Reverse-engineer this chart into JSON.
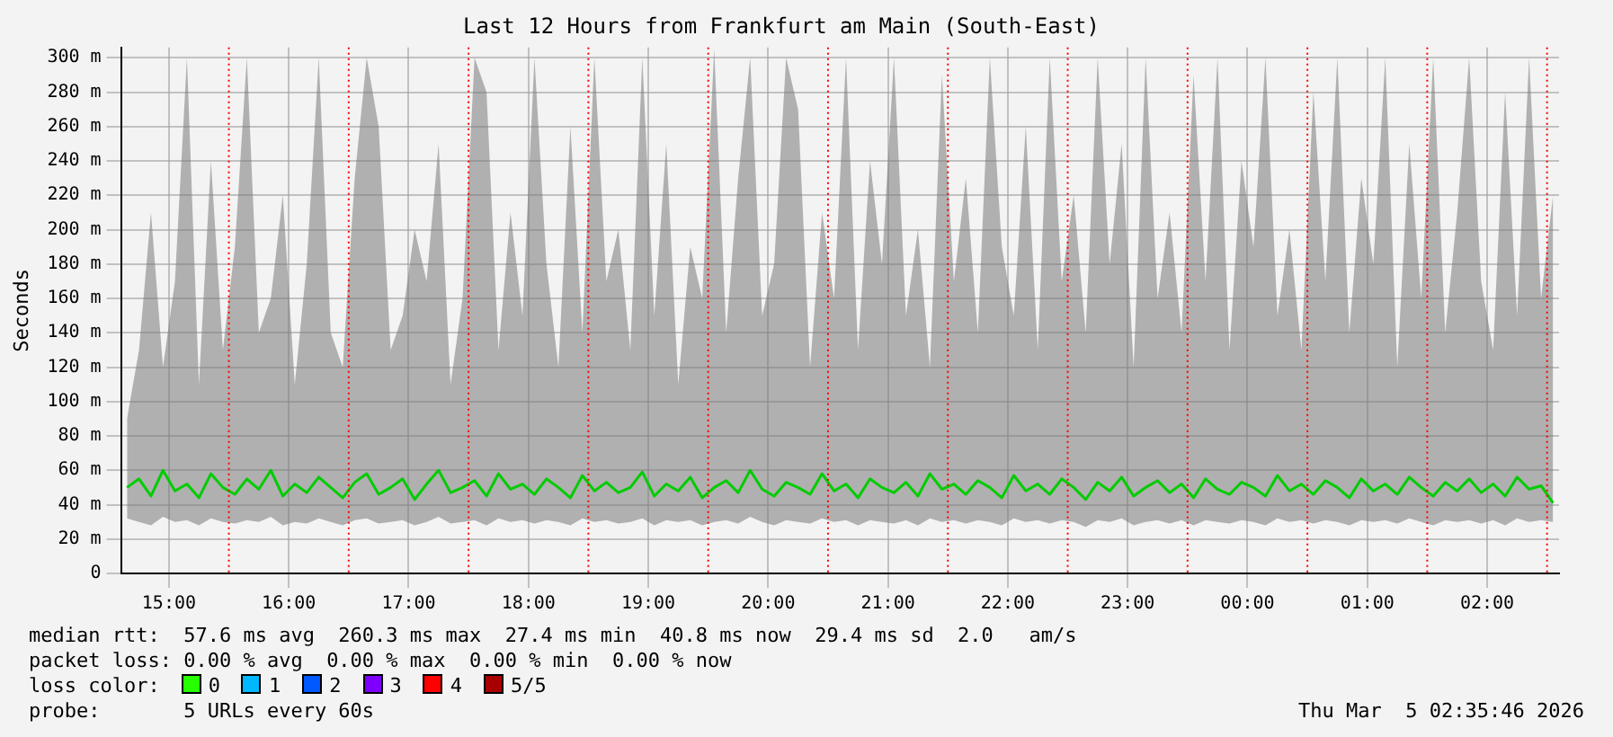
{
  "chart_data": {
    "type": "line",
    "title": "Last 12 Hours from Frankfurt am Main (South-East)",
    "ylabel": "Seconds",
    "x": [
      "2026-03-04T14:39",
      "2026-03-04T14:45",
      "2026-03-04T14:51",
      "2026-03-04T14:57",
      "2026-03-04T15:03",
      "2026-03-04T15:09",
      "2026-03-04T15:15",
      "2026-03-04T15:21",
      "2026-03-04T15:27",
      "2026-03-04T15:33",
      "2026-03-04T15:39",
      "2026-03-04T15:45",
      "2026-03-04T15:51",
      "2026-03-04T15:57",
      "2026-03-04T16:03",
      "2026-03-04T16:09",
      "2026-03-04T16:15",
      "2026-03-04T16:21",
      "2026-03-04T16:27",
      "2026-03-04T16:33",
      "2026-03-04T16:39",
      "2026-03-04T16:45",
      "2026-03-04T16:51",
      "2026-03-04T16:57",
      "2026-03-04T17:03",
      "2026-03-04T17:09",
      "2026-03-04T17:15",
      "2026-03-04T17:21",
      "2026-03-04T17:27",
      "2026-03-04T17:33",
      "2026-03-04T17:39",
      "2026-03-04T17:45",
      "2026-03-04T17:51",
      "2026-03-04T17:57",
      "2026-03-04T18:03",
      "2026-03-04T18:09",
      "2026-03-04T18:15",
      "2026-03-04T18:21",
      "2026-03-04T18:27",
      "2026-03-04T18:33",
      "2026-03-04T18:39",
      "2026-03-04T18:45",
      "2026-03-04T18:51",
      "2026-03-04T18:57",
      "2026-03-04T19:03",
      "2026-03-04T19:09",
      "2026-03-04T19:15",
      "2026-03-04T19:21",
      "2026-03-04T19:27",
      "2026-03-04T19:33",
      "2026-03-04T19:39",
      "2026-03-04T19:45",
      "2026-03-04T19:51",
      "2026-03-04T19:57",
      "2026-03-04T20:03",
      "2026-03-04T20:09",
      "2026-03-04T20:15",
      "2026-03-04T20:21",
      "2026-03-04T20:27",
      "2026-03-04T20:33",
      "2026-03-04T20:39",
      "2026-03-04T20:45",
      "2026-03-04T20:51",
      "2026-03-04T20:57",
      "2026-03-04T21:03",
      "2026-03-04T21:09",
      "2026-03-04T21:15",
      "2026-03-04T21:21",
      "2026-03-04T21:27",
      "2026-03-04T21:33",
      "2026-03-04T21:39",
      "2026-03-04T21:45",
      "2026-03-04T21:51",
      "2026-03-04T21:57",
      "2026-03-04T22:03",
      "2026-03-04T22:09",
      "2026-03-04T22:15",
      "2026-03-04T22:21",
      "2026-03-04T22:27",
      "2026-03-04T22:33",
      "2026-03-04T22:39",
      "2026-03-04T22:45",
      "2026-03-04T22:51",
      "2026-03-04T22:57",
      "2026-03-04T23:03",
      "2026-03-04T23:09",
      "2026-03-04T23:15",
      "2026-03-04T23:21",
      "2026-03-04T23:27",
      "2026-03-04T23:33",
      "2026-03-04T23:39",
      "2026-03-04T23:45",
      "2026-03-04T23:51",
      "2026-03-04T23:57",
      "2026-03-05T00:03",
      "2026-03-05T00:09",
      "2026-03-05T00:15",
      "2026-03-05T00:21",
      "2026-03-05T00:27",
      "2026-03-05T00:33",
      "2026-03-05T00:39",
      "2026-03-05T00:45",
      "2026-03-05T00:51",
      "2026-03-05T00:57",
      "2026-03-05T01:03",
      "2026-03-05T01:09",
      "2026-03-05T01:15",
      "2026-03-05T01:21",
      "2026-03-05T01:27",
      "2026-03-05T01:33",
      "2026-03-05T01:39",
      "2026-03-05T01:45",
      "2026-03-05T01:51",
      "2026-03-05T01:57",
      "2026-03-05T02:03",
      "2026-03-05T02:09",
      "2026-03-05T02:15",
      "2026-03-05T02:21",
      "2026-03-05T02:27",
      "2026-03-05T02:33"
    ],
    "series": [
      {
        "color": "#00cc00",
        "values": [
          50,
          55,
          45,
          60,
          48,
          52,
          44,
          58,
          50,
          46,
          55,
          49,
          60,
          45,
          52,
          47,
          56,
          50,
          44,
          53,
          58,
          46,
          50,
          55,
          43,
          52,
          60,
          47,
          50,
          54,
          45,
          58,
          49,
          52,
          46,
          55,
          50,
          44,
          57,
          48,
          53,
          47,
          50,
          59,
          45,
          52,
          48,
          56,
          44,
          50,
          54,
          47,
          60,
          49,
          45,
          53,
          50,
          46,
          58,
          48,
          52,
          44,
          55,
          50,
          47,
          53,
          45,
          58,
          49,
          52,
          46,
          54,
          50,
          44,
          57,
          48,
          52,
          46,
          55,
          50,
          43,
          53,
          48,
          56,
          45,
          50,
          54,
          47,
          52,
          44,
          55,
          49,
          46,
          53,
          50,
          45,
          57,
          48,
          52,
          46,
          54,
          50,
          44,
          55,
          48,
          52,
          46,
          56,
          50,
          45,
          53,
          48,
          55,
          47,
          52,
          45,
          56,
          49,
          51,
          41
        ],
        "lower": [
          32,
          30,
          28,
          33,
          30,
          31,
          28,
          32,
          30,
          29,
          31,
          30,
          33,
          28,
          30,
          29,
          32,
          30,
          28,
          31,
          32,
          29,
          30,
          31,
          28,
          30,
          33,
          29,
          30,
          31,
          28,
          32,
          30,
          31,
          29,
          31,
          30,
          28,
          32,
          30,
          31,
          29,
          30,
          32,
          28,
          31,
          30,
          31,
          28,
          30,
          31,
          29,
          33,
          30,
          28,
          31,
          30,
          29,
          32,
          30,
          31,
          28,
          31,
          30,
          29,
          31,
          28,
          32,
          30,
          31,
          29,
          31,
          30,
          28,
          32,
          30,
          31,
          29,
          31,
          30,
          27,
          31,
          30,
          32,
          28,
          30,
          31,
          29,
          31,
          28,
          31,
          30,
          29,
          31,
          30,
          28,
          32,
          30,
          31,
          29,
          31,
          30,
          28,
          31,
          30,
          31,
          29,
          32,
          30,
          28,
          31,
          30,
          31,
          29,
          31,
          28,
          32,
          30,
          31,
          30
        ],
        "upper": [
          90,
          130,
          210,
          120,
          170,
          300,
          110,
          240,
          130,
          190,
          300,
          140,
          160,
          220,
          110,
          180,
          300,
          140,
          120,
          230,
          300,
          260,
          130,
          150,
          200,
          170,
          250,
          110,
          160,
          300,
          280,
          130,
          210,
          150,
          300,
          180,
          120,
          260,
          140,
          300,
          170,
          200,
          130,
          300,
          150,
          250,
          110,
          190,
          160,
          305,
          140,
          230,
          300,
          150,
          180,
          300,
          270,
          120,
          210,
          160,
          300,
          130,
          240,
          180,
          300,
          150,
          200,
          120,
          290,
          170,
          230,
          140,
          300,
          190,
          150,
          260,
          130,
          300,
          170,
          220,
          140,
          300,
          180,
          250,
          120,
          300,
          160,
          210,
          140,
          290,
          170,
          300,
          130,
          240,
          190,
          300,
          150,
          200,
          130,
          280,
          170,
          300,
          140,
          230,
          180,
          300,
          120,
          250,
          160,
          300,
          140,
          210,
          300,
          170,
          130,
          280,
          150,
          300,
          160,
          220
        ]
      }
    ],
    "xlim": [
      "2026-03-04T14:36",
      "2026-03-05T02:36"
    ],
    "xticks": [
      {
        "value": "2026-03-04T15:00",
        "label": "15:00"
      },
      {
        "value": "2026-03-04T16:00",
        "label": "16:00"
      },
      {
        "value": "2026-03-04T17:00",
        "label": "17:00"
      },
      {
        "value": "2026-03-04T18:00",
        "label": "18:00"
      },
      {
        "value": "2026-03-04T19:00",
        "label": "19:00"
      },
      {
        "value": "2026-03-04T20:00",
        "label": "20:00"
      },
      {
        "value": "2026-03-04T21:00",
        "label": "21:00"
      },
      {
        "value": "2026-03-04T22:00",
        "label": "22:00"
      },
      {
        "value": "2026-03-04T23:00",
        "label": "23:00"
      },
      {
        "value": "2026-03-05T00:00",
        "label": "00:00"
      },
      {
        "value": "2026-03-05T01:00",
        "label": "01:00"
      },
      {
        "value": "2026-03-05T02:00",
        "label": "02:00"
      }
    ],
    "ylim": [
      0,
      306
    ],
    "yticks": [
      0,
      {
        "value": 20,
        "label": "20 m"
      },
      {
        "value": 40,
        "label": "40 m"
      },
      {
        "value": 60,
        "label": "60 m"
      },
      {
        "value": 80,
        "label": "80 m"
      },
      {
        "value": 100,
        "label": "100 m"
      },
      {
        "value": 120,
        "label": "120 m"
      },
      {
        "value": 140,
        "label": "140 m"
      },
      {
        "value": 160,
        "label": "160 m"
      },
      {
        "value": 180,
        "label": "180 m"
      },
      {
        "value": 200,
        "label": "200 m"
      },
      {
        "value": 220,
        "label": "220 m"
      },
      {
        "value": 240,
        "label": "240 m"
      },
      {
        "value": 260,
        "label": "260 m"
      },
      {
        "value": 280,
        "label": "280 m"
      },
      {
        "value": 300,
        "label": "300 m"
      }
    ],
    "ref_lines": [
      {
        "axis": "x",
        "value": "2026-03-04T15:30",
        "color": "#ff0000",
        "line_style": "dotted"
      },
      {
        "axis": "x",
        "value": "2026-03-04T16:30",
        "color": "#ff0000",
        "line_style": "dotted"
      },
      {
        "axis": "x",
        "value": "2026-03-04T17:30",
        "color": "#ff0000",
        "line_style": "dotted"
      },
      {
        "axis": "x",
        "value": "2026-03-04T18:30",
        "color": "#ff0000",
        "line_style": "dotted"
      },
      {
        "axis": "x",
        "value": "2026-03-04T19:30",
        "color": "#ff0000",
        "line_style": "dotted"
      },
      {
        "axis": "x",
        "value": "2026-03-04T20:30",
        "color": "#ff0000",
        "line_style": "dotted"
      },
      {
        "axis": "x",
        "value": "2026-03-04T21:30",
        "color": "#ff0000",
        "line_style": "dotted"
      },
      {
        "axis": "x",
        "value": "2026-03-04T22:30",
        "color": "#ff0000",
        "line_style": "dotted"
      },
      {
        "axis": "x",
        "value": "2026-03-04T23:30",
        "color": "#ff0000",
        "line_style": "dotted"
      },
      {
        "axis": "x",
        "value": "2026-03-05T00:30",
        "color": "#ff0000",
        "line_style": "dotted"
      },
      {
        "axis": "x",
        "value": "2026-03-05T01:30",
        "color": "#ff0000",
        "line_style": "dotted"
      },
      {
        "axis": "x",
        "value": "2026-03-05T02:30",
        "color": "#ff0000",
        "line_style": "dotted"
      }
    ],
    "grid": true,
    "legend": false,
    "marker": "none",
    "line_style": "solid",
    "annotations": [
      "median rtt:  57.6 ms avg  260.3 ms max  27.4 ms min  40.8 ms now  29.4 ms sd  2.0   am/s",
      "packet loss: 0.00 % avg  0.00 % max  0.00 % min  0.00 % now",
      "loss color:",
      "0",
      "1",
      "2",
      "3",
      "4",
      "5/5",
      "probe:       5 URLs every 60s",
      "Thu Mar  5 02:35:46 2026"
    ]
  }
}
